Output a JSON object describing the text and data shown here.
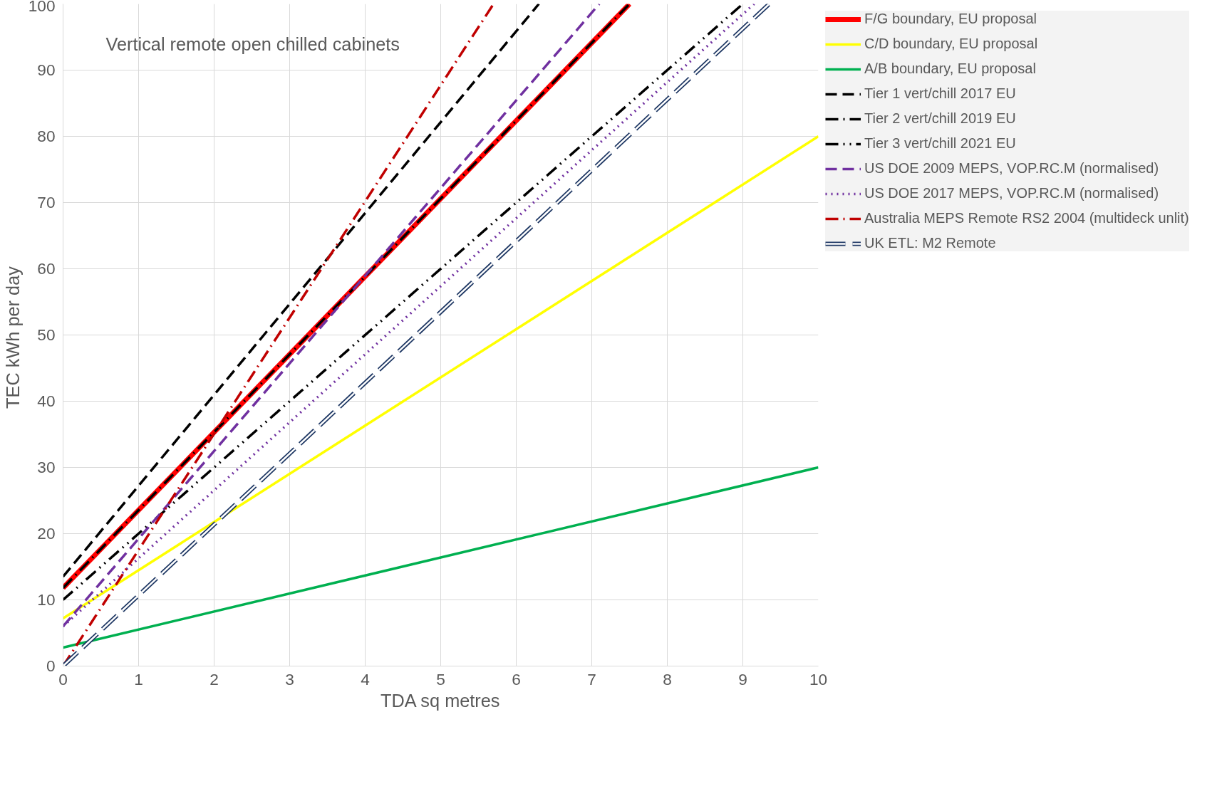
{
  "chart_data": {
    "type": "line",
    "title": "Vertical remote open chilled cabinets",
    "xlabel": "TDA sq metres",
    "ylabel": "TEC  kWh per day",
    "xlim": [
      0,
      10
    ],
    "ylim": [
      0,
      100
    ],
    "xticks": [
      0,
      1,
      2,
      3,
      4,
      5,
      6,
      7,
      8,
      9,
      10
    ],
    "yticks": [
      0,
      10,
      20,
      30,
      40,
      50,
      60,
      70,
      80,
      90,
      100
    ],
    "grid": true,
    "legend": "right",
    "marker": "none",
    "series": [
      {
        "name": "F/G boundary, EU proposal",
        "color": "#ff0000",
        "line_style": "solid",
        "x": [
          0,
          7.5
        ],
        "values": [
          11.8,
          100
        ]
      },
      {
        "name": "C/D boundary, EU proposal",
        "color": "#ffff00",
        "line_style": "solid",
        "x": [
          0,
          10
        ],
        "values": [
          7.2,
          80
        ]
      },
      {
        "name": "A/B boundary, EU proposal",
        "color": "#00b050",
        "line_style": "solid",
        "x": [
          0,
          10
        ],
        "values": [
          2.8,
          30
        ]
      },
      {
        "name": "Tier 1 vert/chill 2017 EU",
        "color": "#000000",
        "line_style": "dashed",
        "x": [
          0,
          6.3
        ],
        "values": [
          13.5,
          100
        ]
      },
      {
        "name": "Tier 2 vert/chill 2019 EU",
        "color": "#000000",
        "line_style": "dashdot",
        "x": [
          0,
          7.5
        ],
        "values": [
          11.8,
          100
        ]
      },
      {
        "name": "Tier 3 vert/chill 2021 EU",
        "color": "#000000",
        "line_style": "dashdotdot",
        "x": [
          0,
          9.0
        ],
        "values": [
          10,
          100
        ]
      },
      {
        "name": "US DOE 2009 MEPS, VOP.RC.M (normalised)",
        "color": "#7030a0",
        "line_style": "dashed",
        "x": [
          0,
          7.1
        ],
        "values": [
          6,
          100
        ]
      },
      {
        "name": "US DOE 2017 MEPS, VOP.RC.M (normalised)",
        "color": "#7030a0",
        "line_style": "dotted",
        "x": [
          0,
          9.15
        ],
        "values": [
          6,
          100
        ]
      },
      {
        "name": "Australia MEPS Remote RS2 2004 (multideck unlit)",
        "color": "#c00000",
        "line_style": "dashdot",
        "x": [
          0,
          5.7
        ],
        "values": [
          0,
          100
        ]
      },
      {
        "name": "UK ETL: M2 Remote",
        "color": "#1f3864",
        "line_style": "longdash",
        "x": [
          0,
          9.35
        ],
        "values": [
          0,
          100
        ]
      }
    ]
  }
}
